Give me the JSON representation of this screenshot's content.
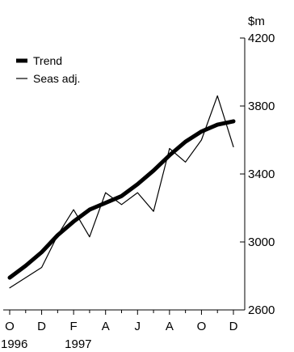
{
  "chart_data": {
    "type": "line",
    "ylabel": "$m",
    "ylim": [
      2600,
      4200
    ],
    "yticks": [
      "4200",
      "3800",
      "3400",
      "3000",
      "2600"
    ],
    "ytick_values": [
      4200,
      3800,
      3400,
      3000,
      2600
    ],
    "xlim": [
      0,
      14
    ],
    "x_tick_positions": [
      0,
      2,
      4,
      6,
      8,
      10,
      12,
      14
    ],
    "xtick_labels": [
      "O",
      "D",
      "F",
      "A",
      "J",
      "A",
      "O",
      "D"
    ],
    "year_labels": [
      {
        "label": "1996",
        "month_index": 0
      },
      {
        "label": "1997",
        "month_index": 4
      }
    ],
    "legend_position": "top-left",
    "grid": false,
    "series": [
      {
        "name": "Trend",
        "style": "thick",
        "x": [
          0,
          1,
          2,
          3,
          4,
          5,
          6,
          7,
          8,
          9,
          10,
          11,
          12,
          13,
          14
        ],
        "values": [
          2790,
          2860,
          2940,
          3040,
          3120,
          3190,
          3230,
          3270,
          3340,
          3420,
          3510,
          3590,
          3650,
          3690,
          3710
        ]
      },
      {
        "name": "Seas adj.",
        "style": "thin",
        "x": [
          0,
          1,
          2,
          3,
          4,
          5,
          6,
          7,
          8,
          9,
          10,
          11,
          12,
          13,
          14
        ],
        "values": [
          2730,
          2790,
          2850,
          3040,
          3190,
          3030,
          3290,
          3220,
          3290,
          3180,
          3550,
          3470,
          3600,
          3860,
          3560
        ]
      }
    ]
  }
}
